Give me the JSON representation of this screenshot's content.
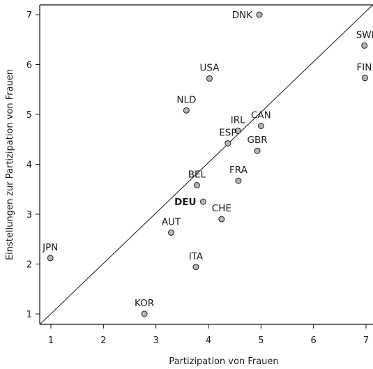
{
  "chart_data": {
    "type": "scatter",
    "title": "",
    "xlabel": "Partizipation von Frauen",
    "ylabel": "Einstellungen zur Partizipation von Frauen",
    "xlim": [
      0.8,
      7.2
    ],
    "ylim": [
      0.8,
      7.2
    ],
    "x_ticks": [
      1,
      2,
      3,
      4,
      5,
      6,
      7
    ],
    "y_ticks": [
      1,
      2,
      3,
      4,
      5,
      6,
      7
    ],
    "grid": false,
    "reference_line": {
      "from": [
        0.8,
        0.8
      ],
      "to": [
        7.2,
        7.2
      ]
    },
    "point_color": "#b5b5b5",
    "points": [
      {
        "label": "DNK",
        "x": 4.97,
        "y": 7.0,
        "label_pos": "left"
      },
      {
        "label": "SWE",
        "x": 6.97,
        "y": 6.38,
        "label_pos": "above"
      },
      {
        "label": "FIN",
        "x": 6.98,
        "y": 5.73,
        "label_pos": "above"
      },
      {
        "label": "USA",
        "x": 4.02,
        "y": 5.72,
        "label_pos": "above"
      },
      {
        "label": "NLD",
        "x": 3.58,
        "y": 5.08,
        "label_pos": "above"
      },
      {
        "label": "CAN",
        "x": 5.0,
        "y": 4.77,
        "label_pos": "above"
      },
      {
        "label": "IRL",
        "x": 4.56,
        "y": 4.67,
        "label_pos": "above"
      },
      {
        "label": "ESP",
        "x": 4.37,
        "y": 4.42,
        "label_pos": "above"
      },
      {
        "label": "GBR",
        "x": 4.93,
        "y": 4.27,
        "label_pos": "above"
      },
      {
        "label": "FRA",
        "x": 4.57,
        "y": 3.67,
        "label_pos": "above"
      },
      {
        "label": "BEL",
        "x": 3.78,
        "y": 3.58,
        "label_pos": "above"
      },
      {
        "label": "DEU",
        "x": 3.9,
        "y": 3.25,
        "label_pos": "left",
        "bold": true
      },
      {
        "label": "CHE",
        "x": 4.25,
        "y": 2.9,
        "label_pos": "above"
      },
      {
        "label": "AUT",
        "x": 3.29,
        "y": 2.63,
        "label_pos": "above"
      },
      {
        "label": "JPN",
        "x": 0.99,
        "y": 2.12,
        "label_pos": "above"
      },
      {
        "label": "ITA",
        "x": 3.76,
        "y": 1.94,
        "label_pos": "above"
      },
      {
        "label": "KOR",
        "x": 2.78,
        "y": 1.0,
        "label_pos": "above"
      }
    ]
  }
}
